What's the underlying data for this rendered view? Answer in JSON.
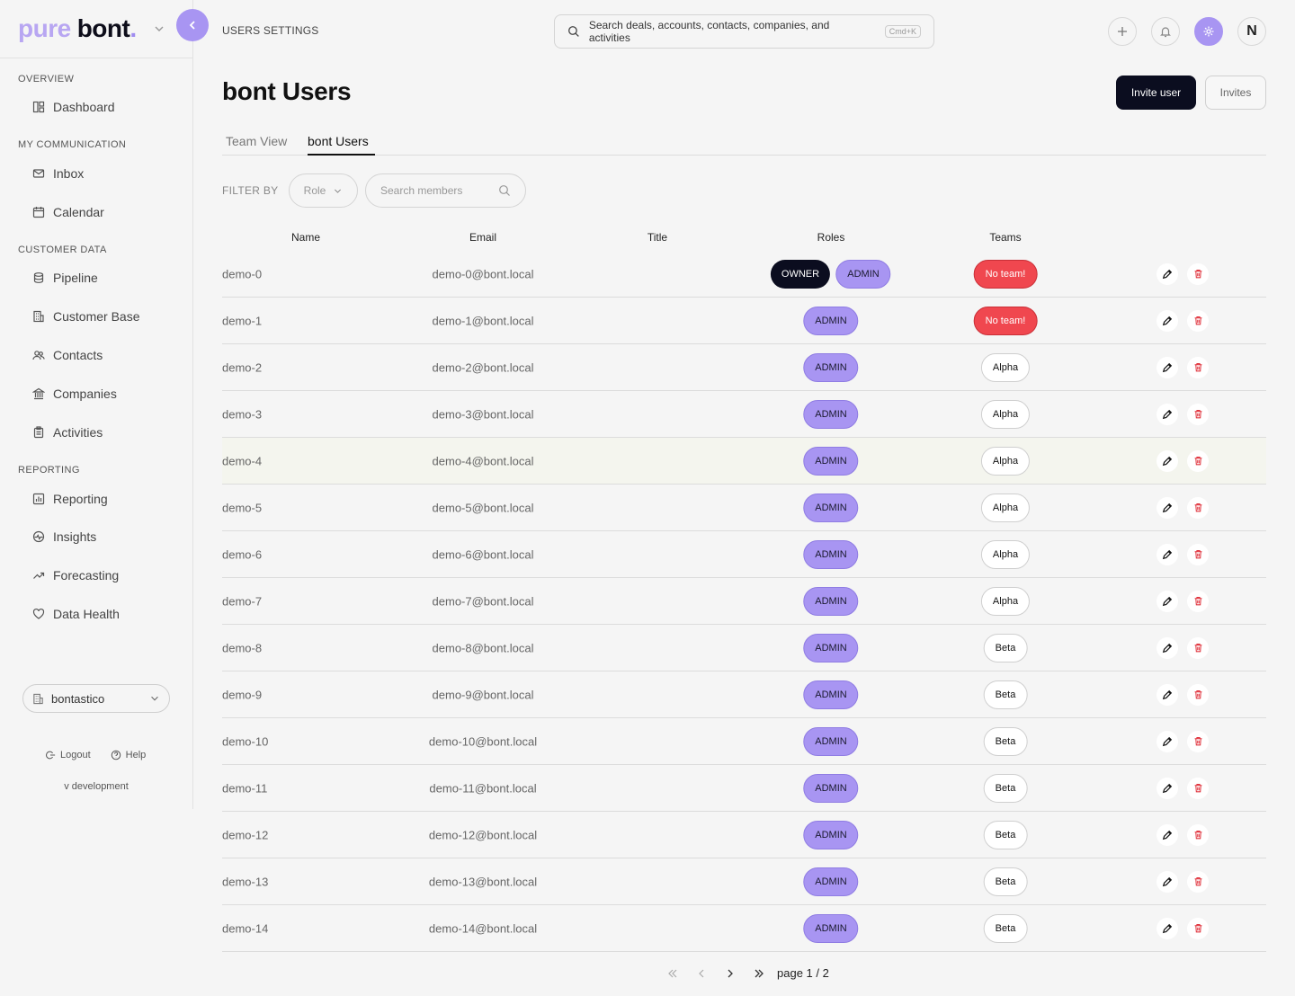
{
  "brand": {
    "part1": "pure",
    "part2": "bont",
    "dot": "."
  },
  "sidebar": {
    "sections": [
      {
        "title": "OVERVIEW",
        "items": [
          {
            "label": "Dashboard",
            "icon": "dashboard-icon"
          }
        ]
      },
      {
        "title": "MY COMMUNICATION",
        "items": [
          {
            "label": "Inbox",
            "icon": "mail-icon"
          },
          {
            "label": "Calendar",
            "icon": "calendar-icon"
          }
        ]
      },
      {
        "title": "CUSTOMER DATA",
        "items": [
          {
            "label": "Pipeline",
            "icon": "database-icon"
          },
          {
            "label": "Customer Base",
            "icon": "building-icon"
          },
          {
            "label": "Contacts",
            "icon": "users-icon"
          },
          {
            "label": "Companies",
            "icon": "bank-icon"
          },
          {
            "label": "Activities",
            "icon": "clipboard-icon"
          }
        ]
      },
      {
        "title": "REPORTING",
        "items": [
          {
            "label": "Reporting",
            "icon": "chart-icon"
          },
          {
            "label": "Insights",
            "icon": "activity-icon"
          },
          {
            "label": "Forecasting",
            "icon": "trend-icon"
          },
          {
            "label": "Data Health",
            "icon": "heart-icon"
          }
        ]
      }
    ],
    "workspace": "bontastico",
    "logout": "Logout",
    "help": "Help",
    "version": "v development"
  },
  "topbar": {
    "breadcrumb": "USERS SETTINGS",
    "search_placeholder": "Search deals, accounts, contacts, companies, and activities",
    "search_shortcut": "Cmd+K",
    "avatar_initial": "N"
  },
  "header": {
    "title": "bont Users",
    "invite_user": "Invite user",
    "invites": "Invites"
  },
  "tabs": [
    {
      "label": "Team View",
      "active": false
    },
    {
      "label": "bont Users",
      "active": true
    }
  ],
  "filters": {
    "label": "FILTER BY",
    "role_placeholder": "Role",
    "member_search_placeholder": "Search members"
  },
  "table": {
    "columns": [
      "Name",
      "Email",
      "Title",
      "Roles",
      "Teams"
    ],
    "rows": [
      {
        "name": "demo-0",
        "email": "demo-0@bont.local",
        "title": "",
        "roles": [
          "OWNER",
          "ADMIN"
        ],
        "team": "No team!"
      },
      {
        "name": "demo-1",
        "email": "demo-1@bont.local",
        "title": "",
        "roles": [
          "ADMIN"
        ],
        "team": "No team!"
      },
      {
        "name": "demo-2",
        "email": "demo-2@bont.local",
        "title": "",
        "roles": [
          "ADMIN"
        ],
        "team": "Alpha"
      },
      {
        "name": "demo-3",
        "email": "demo-3@bont.local",
        "title": "",
        "roles": [
          "ADMIN"
        ],
        "team": "Alpha"
      },
      {
        "name": "demo-4",
        "email": "demo-4@bont.local",
        "title": "",
        "roles": [
          "ADMIN"
        ],
        "team": "Alpha"
      },
      {
        "name": "demo-5",
        "email": "demo-5@bont.local",
        "title": "",
        "roles": [
          "ADMIN"
        ],
        "team": "Alpha"
      },
      {
        "name": "demo-6",
        "email": "demo-6@bont.local",
        "title": "",
        "roles": [
          "ADMIN"
        ],
        "team": "Alpha"
      },
      {
        "name": "demo-7",
        "email": "demo-7@bont.local",
        "title": "",
        "roles": [
          "ADMIN"
        ],
        "team": "Alpha"
      },
      {
        "name": "demo-8",
        "email": "demo-8@bont.local",
        "title": "",
        "roles": [
          "ADMIN"
        ],
        "team": "Beta"
      },
      {
        "name": "demo-9",
        "email": "demo-9@bont.local",
        "title": "",
        "roles": [
          "ADMIN"
        ],
        "team": "Beta"
      },
      {
        "name": "demo-10",
        "email": "demo-10@bont.local",
        "title": "",
        "roles": [
          "ADMIN"
        ],
        "team": "Beta"
      },
      {
        "name": "demo-11",
        "email": "demo-11@bont.local",
        "title": "",
        "roles": [
          "ADMIN"
        ],
        "team": "Beta"
      },
      {
        "name": "demo-12",
        "email": "demo-12@bont.local",
        "title": "",
        "roles": [
          "ADMIN"
        ],
        "team": "Beta"
      },
      {
        "name": "demo-13",
        "email": "demo-13@bont.local",
        "title": "",
        "roles": [
          "ADMIN"
        ],
        "team": "Beta"
      },
      {
        "name": "demo-14",
        "email": "demo-14@bont.local",
        "title": "",
        "roles": [
          "ADMIN"
        ],
        "team": "Beta"
      }
    ]
  },
  "pagination": {
    "label": "page 1 / 2"
  },
  "colors": {
    "accent": "#a895f2",
    "dark": "#0b0d1f",
    "danger": "#f0474f",
    "background": "#f5f5f5"
  }
}
